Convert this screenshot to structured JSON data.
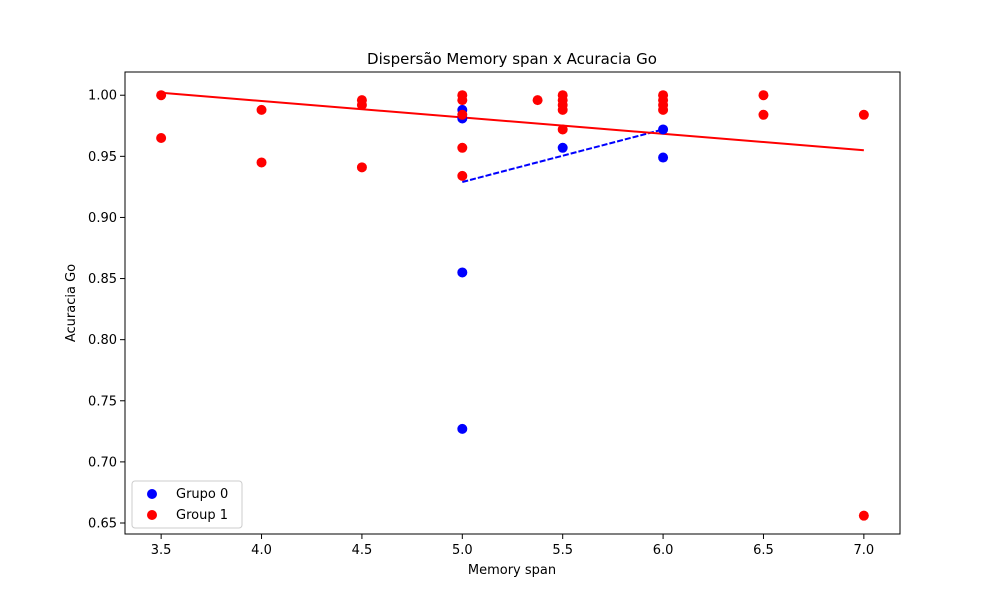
{
  "chart_data": {
    "type": "scatter",
    "title": "Dispersão Memory span x Acuracia Go",
    "xlabel": "Memory span",
    "ylabel": "Acuracia Go",
    "xlim": [
      3.32,
      7.18
    ],
    "ylim": [
      0.641,
      1.019
    ],
    "xticks": [
      3.5,
      4.0,
      4.5,
      5.0,
      5.5,
      6.0,
      6.5,
      7.0
    ],
    "xtick_labels": [
      "3.5",
      "4.0",
      "4.5",
      "5.0",
      "5.5",
      "6.0",
      "6.5",
      "7.0"
    ],
    "yticks": [
      0.65,
      0.7,
      0.75,
      0.8,
      0.85,
      0.9,
      0.95,
      1.0
    ],
    "ytick_labels": [
      "0.65",
      "0.70",
      "0.75",
      "0.80",
      "0.85",
      "0.90",
      "0.95",
      "1.00"
    ],
    "grid": false,
    "legend_position": "lower-left",
    "series": [
      {
        "name": "Grupo 0",
        "color": "#0000ff",
        "points": [
          {
            "x": 5.0,
            "y": 0.988
          },
          {
            "x": 5.0,
            "y": 0.981
          },
          {
            "x": 5.0,
            "y": 0.855
          },
          {
            "x": 5.0,
            "y": 0.727
          },
          {
            "x": 5.5,
            "y": 0.957
          },
          {
            "x": 6.0,
            "y": 0.972
          },
          {
            "x": 6.0,
            "y": 0.949
          }
        ],
        "trend": {
          "x": [
            5.0,
            6.0
          ],
          "y": [
            0.929,
            0.972
          ],
          "style": "dashed"
        }
      },
      {
        "name": "Group 1",
        "color": "#ff0000",
        "points": [
          {
            "x": 3.5,
            "y": 1.0
          },
          {
            "x": 3.5,
            "y": 0.965
          },
          {
            "x": 4.0,
            "y": 0.988
          },
          {
            "x": 4.0,
            "y": 0.945
          },
          {
            "x": 4.5,
            "y": 0.996
          },
          {
            "x": 4.5,
            "y": 0.992
          },
          {
            "x": 4.5,
            "y": 0.941
          },
          {
            "x": 5.0,
            "y": 1.0
          },
          {
            "x": 5.0,
            "y": 0.996
          },
          {
            "x": 5.0,
            "y": 0.984
          },
          {
            "x": 5.0,
            "y": 0.957
          },
          {
            "x": 5.0,
            "y": 0.934
          },
          {
            "x": 5.375,
            "y": 0.996
          },
          {
            "x": 5.5,
            "y": 1.0
          },
          {
            "x": 5.5,
            "y": 0.996
          },
          {
            "x": 5.5,
            "y": 0.992
          },
          {
            "x": 5.5,
            "y": 0.988
          },
          {
            "x": 5.5,
            "y": 0.972
          },
          {
            "x": 6.0,
            "y": 1.0
          },
          {
            "x": 6.0,
            "y": 0.996
          },
          {
            "x": 6.0,
            "y": 0.992
          },
          {
            "x": 6.0,
            "y": 0.988
          },
          {
            "x": 6.5,
            "y": 1.0
          },
          {
            "x": 6.5,
            "y": 0.984
          },
          {
            "x": 7.0,
            "y": 0.984
          },
          {
            "x": 7.0,
            "y": 0.656
          }
        ],
        "trend": {
          "x": [
            3.5,
            7.0
          ],
          "y": [
            1.002,
            0.955
          ],
          "style": "solid"
        }
      }
    ]
  }
}
